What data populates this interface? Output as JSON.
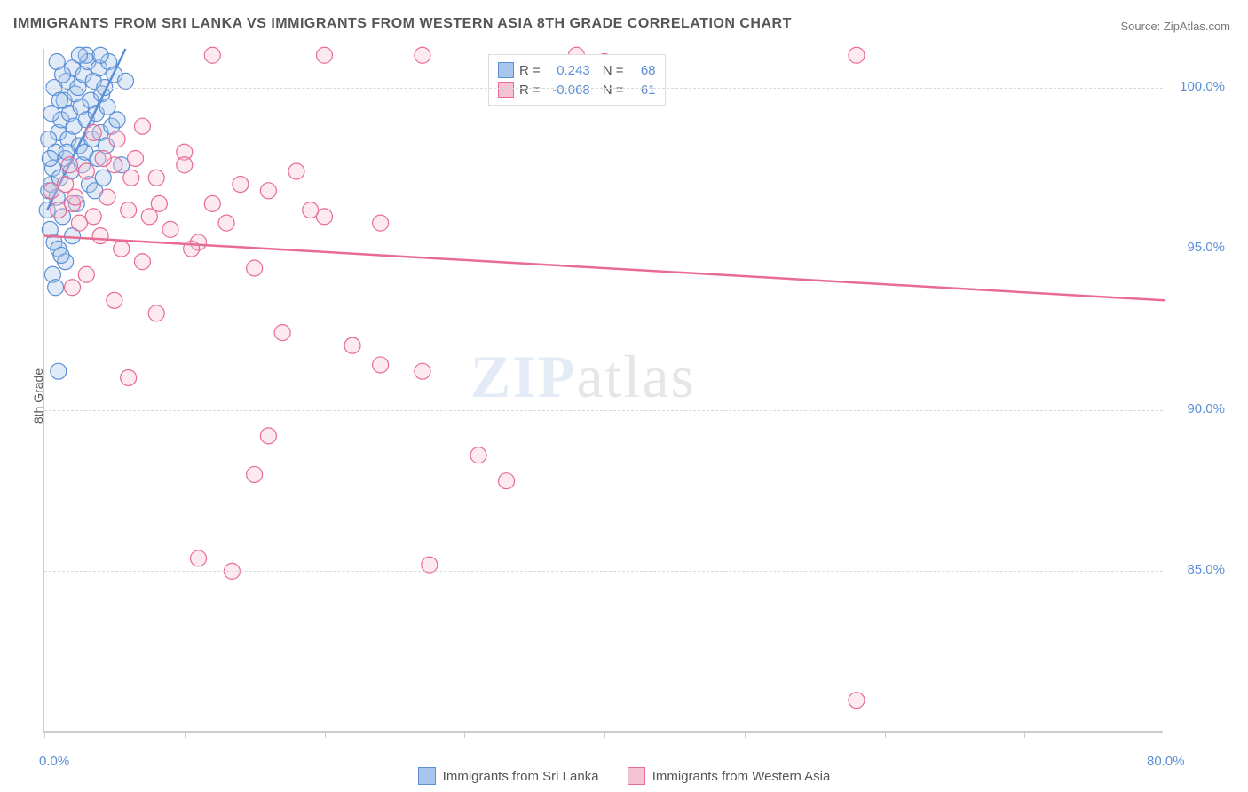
{
  "title": "IMMIGRANTS FROM SRI LANKA VS IMMIGRANTS FROM WESTERN ASIA 8TH GRADE CORRELATION CHART",
  "source_label": "Source: ZipAtlas.com",
  "ylabel": "8th Grade",
  "watermark": {
    "part1": "ZIP",
    "part2": "atlas"
  },
  "chart": {
    "type": "scatter",
    "background_color": "#ffffff",
    "grid_color": "#d8d8d8",
    "axis_color": "#cccccc",
    "text_color": "#555555",
    "value_color": "#5b8fd6",
    "xlim": [
      0,
      80
    ],
    "ylim": [
      80,
      101.2
    ],
    "x_ticks": [
      0,
      10,
      20,
      30,
      40,
      50,
      60,
      70,
      80
    ],
    "x_tick_labels": {
      "0": "0.0%",
      "80": "80.0%"
    },
    "y_gridlines": [
      85,
      90,
      95,
      100
    ],
    "y_tick_labels": {
      "85": "85.0%",
      "90": "90.0%",
      "95": "95.0%",
      "100": "100.0%"
    },
    "marker_radius": 9,
    "marker_opacity": 0.35,
    "line_width": 2.5
  },
  "series": [
    {
      "name": "Immigrants from Sri Lanka",
      "color_fill": "#a8c6ec",
      "color_stroke": "#5b8fd6",
      "r_label": "R =",
      "r_value": "0.243",
      "n_label": "N =",
      "n_value": "68",
      "trend": {
        "x1": 0.2,
        "y1": 96.2,
        "x2": 5.8,
        "y2": 101.2
      },
      "points": [
        [
          0.2,
          96.2
        ],
        [
          0.3,
          96.8
        ],
        [
          0.4,
          95.6
        ],
        [
          0.5,
          97.0
        ],
        [
          0.6,
          97.5
        ],
        [
          0.7,
          95.2
        ],
        [
          0.8,
          98.0
        ],
        [
          0.9,
          96.6
        ],
        [
          1.0,
          98.6
        ],
        [
          1.1,
          97.2
        ],
        [
          1.2,
          99.0
        ],
        [
          1.3,
          96.0
        ],
        [
          1.4,
          99.6
        ],
        [
          1.5,
          97.8
        ],
        [
          1.6,
          100.2
        ],
        [
          1.7,
          98.4
        ],
        [
          1.8,
          99.2
        ],
        [
          1.9,
          97.4
        ],
        [
          2.0,
          100.6
        ],
        [
          2.1,
          98.8
        ],
        [
          2.2,
          99.8
        ],
        [
          2.3,
          96.4
        ],
        [
          2.4,
          100.0
        ],
        [
          2.5,
          98.2
        ],
        [
          2.6,
          99.4
        ],
        [
          2.7,
          97.6
        ],
        [
          2.8,
          100.4
        ],
        [
          2.9,
          98.0
        ],
        [
          3.0,
          99.0
        ],
        [
          3.1,
          100.8
        ],
        [
          3.2,
          97.0
        ],
        [
          3.3,
          99.6
        ],
        [
          3.4,
          98.4
        ],
        [
          3.5,
          100.2
        ],
        [
          3.6,
          96.8
        ],
        [
          3.7,
          99.2
        ],
        [
          3.8,
          97.8
        ],
        [
          3.9,
          100.6
        ],
        [
          4.0,
          98.6
        ],
        [
          4.1,
          99.8
        ],
        [
          4.2,
          97.2
        ],
        [
          4.3,
          100.0
        ],
        [
          4.4,
          98.2
        ],
        [
          4.5,
          99.4
        ],
        [
          4.6,
          100.8
        ],
        [
          4.8,
          98.8
        ],
        [
          5.0,
          100.4
        ],
        [
          5.2,
          99.0
        ],
        [
          5.5,
          97.6
        ],
        [
          5.8,
          100.2
        ],
        [
          1.0,
          95.0
        ],
        [
          1.5,
          94.6
        ],
        [
          2.0,
          95.4
        ],
        [
          0.6,
          94.2
        ],
        [
          0.8,
          93.8
        ],
        [
          1.2,
          94.8
        ],
        [
          0.4,
          97.8
        ],
        [
          0.3,
          98.4
        ],
        [
          0.5,
          99.2
        ],
        [
          0.7,
          100.0
        ],
        [
          0.9,
          100.8
        ],
        [
          1.1,
          99.6
        ],
        [
          1.3,
          100.4
        ],
        [
          1.6,
          98.0
        ],
        [
          1.0,
          91.2
        ],
        [
          3.0,
          101.0
        ],
        [
          2.5,
          101.0
        ],
        [
          4.0,
          101.0
        ]
      ]
    },
    {
      "name": "Immigrants from Western Asia",
      "color_fill": "#f5c4d3",
      "color_stroke": "#e86b94",
      "r_label": "R =",
      "r_value": "-0.068",
      "n_label": "N =",
      "n_value": "61",
      "trend": {
        "x1": 0,
        "y1": 95.4,
        "x2": 80,
        "y2": 93.4
      },
      "points": [
        [
          0.5,
          96.8
        ],
        [
          1.0,
          96.2
        ],
        [
          1.5,
          97.0
        ],
        [
          2.0,
          96.4
        ],
        [
          2.5,
          95.8
        ],
        [
          3.0,
          97.4
        ],
        [
          3.5,
          96.0
        ],
        [
          4.0,
          95.4
        ],
        [
          4.5,
          96.6
        ],
        [
          5.0,
          97.6
        ],
        [
          5.5,
          95.0
        ],
        [
          6.0,
          96.2
        ],
        [
          6.5,
          97.8
        ],
        [
          7.0,
          94.6
        ],
        [
          7.5,
          96.0
        ],
        [
          8.0,
          97.2
        ],
        [
          9.0,
          95.6
        ],
        [
          10.0,
          98.0
        ],
        [
          11.0,
          95.2
        ],
        [
          12.0,
          96.4
        ],
        [
          13.0,
          95.8
        ],
        [
          14.0,
          97.0
        ],
        [
          15.0,
          94.4
        ],
        [
          16.0,
          96.8
        ],
        [
          18.0,
          97.4
        ],
        [
          20.0,
          96.0
        ],
        [
          24.0,
          95.8
        ],
        [
          27.0,
          101.0
        ],
        [
          12.0,
          101.0
        ],
        [
          20.0,
          101.0
        ],
        [
          38.0,
          101.0
        ],
        [
          58.0,
          101.0
        ],
        [
          3.5,
          98.6
        ],
        [
          5.2,
          98.4
        ],
        [
          7.0,
          98.8
        ],
        [
          2.0,
          93.8
        ],
        [
          3.0,
          94.2
        ],
        [
          5.0,
          93.4
        ],
        [
          8.0,
          93.0
        ],
        [
          6.0,
          91.0
        ],
        [
          22.0,
          92.0
        ],
        [
          24.0,
          91.4
        ],
        [
          27.0,
          91.2
        ],
        [
          16.0,
          89.2
        ],
        [
          11.0,
          85.4
        ],
        [
          13.4,
          85.0
        ],
        [
          27.5,
          85.2
        ],
        [
          31.0,
          88.6
        ],
        [
          33.0,
          87.8
        ],
        [
          15.0,
          88.0
        ],
        [
          17.0,
          92.4
        ],
        [
          19.0,
          96.2
        ],
        [
          1.8,
          97.6
        ],
        [
          2.2,
          96.6
        ],
        [
          4.2,
          97.8
        ],
        [
          6.2,
          97.2
        ],
        [
          8.2,
          96.4
        ],
        [
          10.5,
          95.0
        ],
        [
          58.0,
          81.0
        ],
        [
          40.0,
          100.8
        ],
        [
          10.0,
          97.6
        ]
      ]
    }
  ],
  "legend_bottom": [
    {
      "label": "Immigrants from Sri Lanka",
      "fill": "#a8c6ec",
      "stroke": "#5b8fd6"
    },
    {
      "label": "Immigrants from Western Asia",
      "fill": "#f5c4d3",
      "stroke": "#e86b94"
    }
  ]
}
